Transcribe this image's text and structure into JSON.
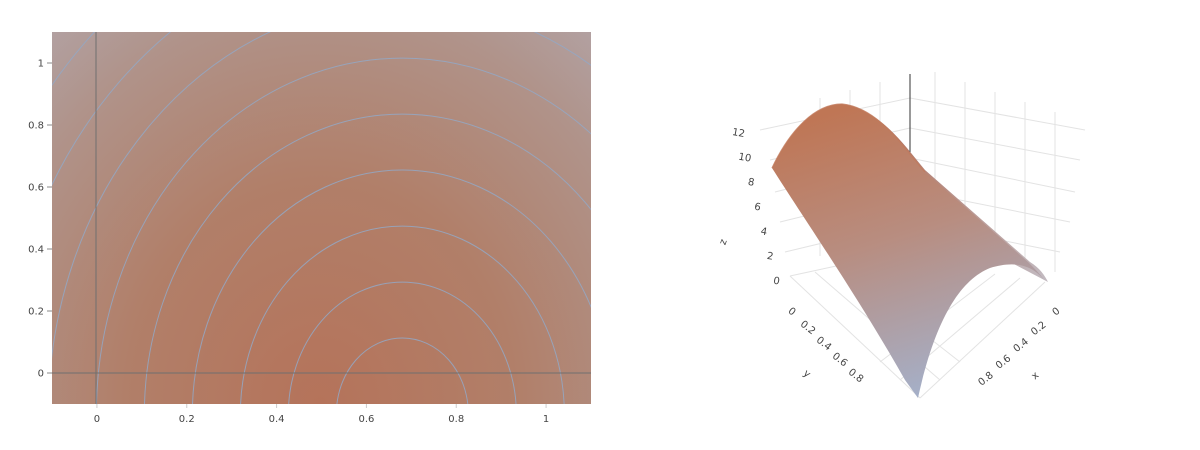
{
  "chart_data": [
    {
      "type": "heatmap",
      "subtype": "filled-contour",
      "x_ticks": [
        "0",
        "0.2",
        "0.4",
        "0.6",
        "0.8",
        "1"
      ],
      "y_ticks": [
        "0",
        "0.2",
        "0.4",
        "0.6",
        "0.8",
        "1"
      ],
      "xlim": [
        -0.1,
        1.1
      ],
      "ylim": [
        -0.1,
        1.1
      ],
      "zero_lines": true,
      "grid": false,
      "peak": {
        "x": 0.68,
        "y": -0.1
      },
      "z_range": [
        0,
        12
      ],
      "contour_step": 0.5,
      "colors": {
        "low": "#b3bfd4",
        "high": "#b5735a",
        "contour_line": "#93a8c6"
      }
    },
    {
      "type": "surface",
      "x_ticks": [
        "0",
        "0.2",
        "0.4",
        "0.6",
        "0.8"
      ],
      "y_ticks": [
        "0",
        "0.2",
        "0.4",
        "0.6",
        "0.8"
      ],
      "z_ticks": [
        "0",
        "2",
        "4",
        "6",
        "8",
        "10",
        "12"
      ],
      "xlabel": "x",
      "ylabel": "y",
      "zlabel": "z",
      "xlim": [
        0,
        1
      ],
      "ylim": [
        0,
        1
      ],
      "zlim": [
        0,
        12
      ],
      "colors": {
        "low": "#a8b4cc",
        "high": "#bf7655",
        "grid": "#e3e3e3"
      }
    }
  ]
}
